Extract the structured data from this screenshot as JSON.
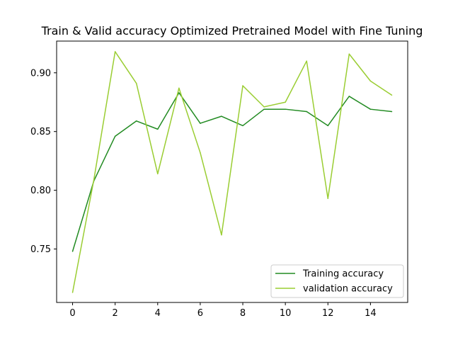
{
  "chart_data": {
    "type": "line",
    "title": "Train & Valid accuracy Optimized Pretrained Model with Fine Tuning",
    "xlabel": "",
    "ylabel": "",
    "x": [
      0,
      1,
      2,
      3,
      4,
      5,
      6,
      7,
      8,
      9,
      10,
      11,
      12,
      13,
      14,
      15
    ],
    "xlim": [
      -0.75,
      15.75
    ],
    "ylim": [
      0.7045,
      0.927
    ],
    "xticks": [
      0,
      2,
      4,
      6,
      8,
      10,
      12,
      14
    ],
    "yticks": [
      0.75,
      0.8,
      0.85,
      0.9
    ],
    "ytick_labels": [
      "0.75",
      "0.80",
      "0.85",
      "0.90"
    ],
    "grid": false,
    "legend_position": "lower right",
    "series": [
      {
        "name": "Training accuracy",
        "color": "#228b22",
        "values": [
          0.748,
          0.808,
          0.846,
          0.859,
          0.852,
          0.883,
          0.857,
          0.863,
          0.855,
          0.869,
          0.869,
          0.867,
          0.855,
          0.88,
          0.869,
          0.867
        ]
      },
      {
        "name": "validation accuracy",
        "color": "#9acd32",
        "values": [
          0.713,
          0.809,
          0.918,
          0.891,
          0.814,
          0.887,
          0.832,
          0.762,
          0.889,
          0.871,
          0.875,
          0.91,
          0.793,
          0.916,
          0.893,
          0.881
        ]
      }
    ]
  }
}
